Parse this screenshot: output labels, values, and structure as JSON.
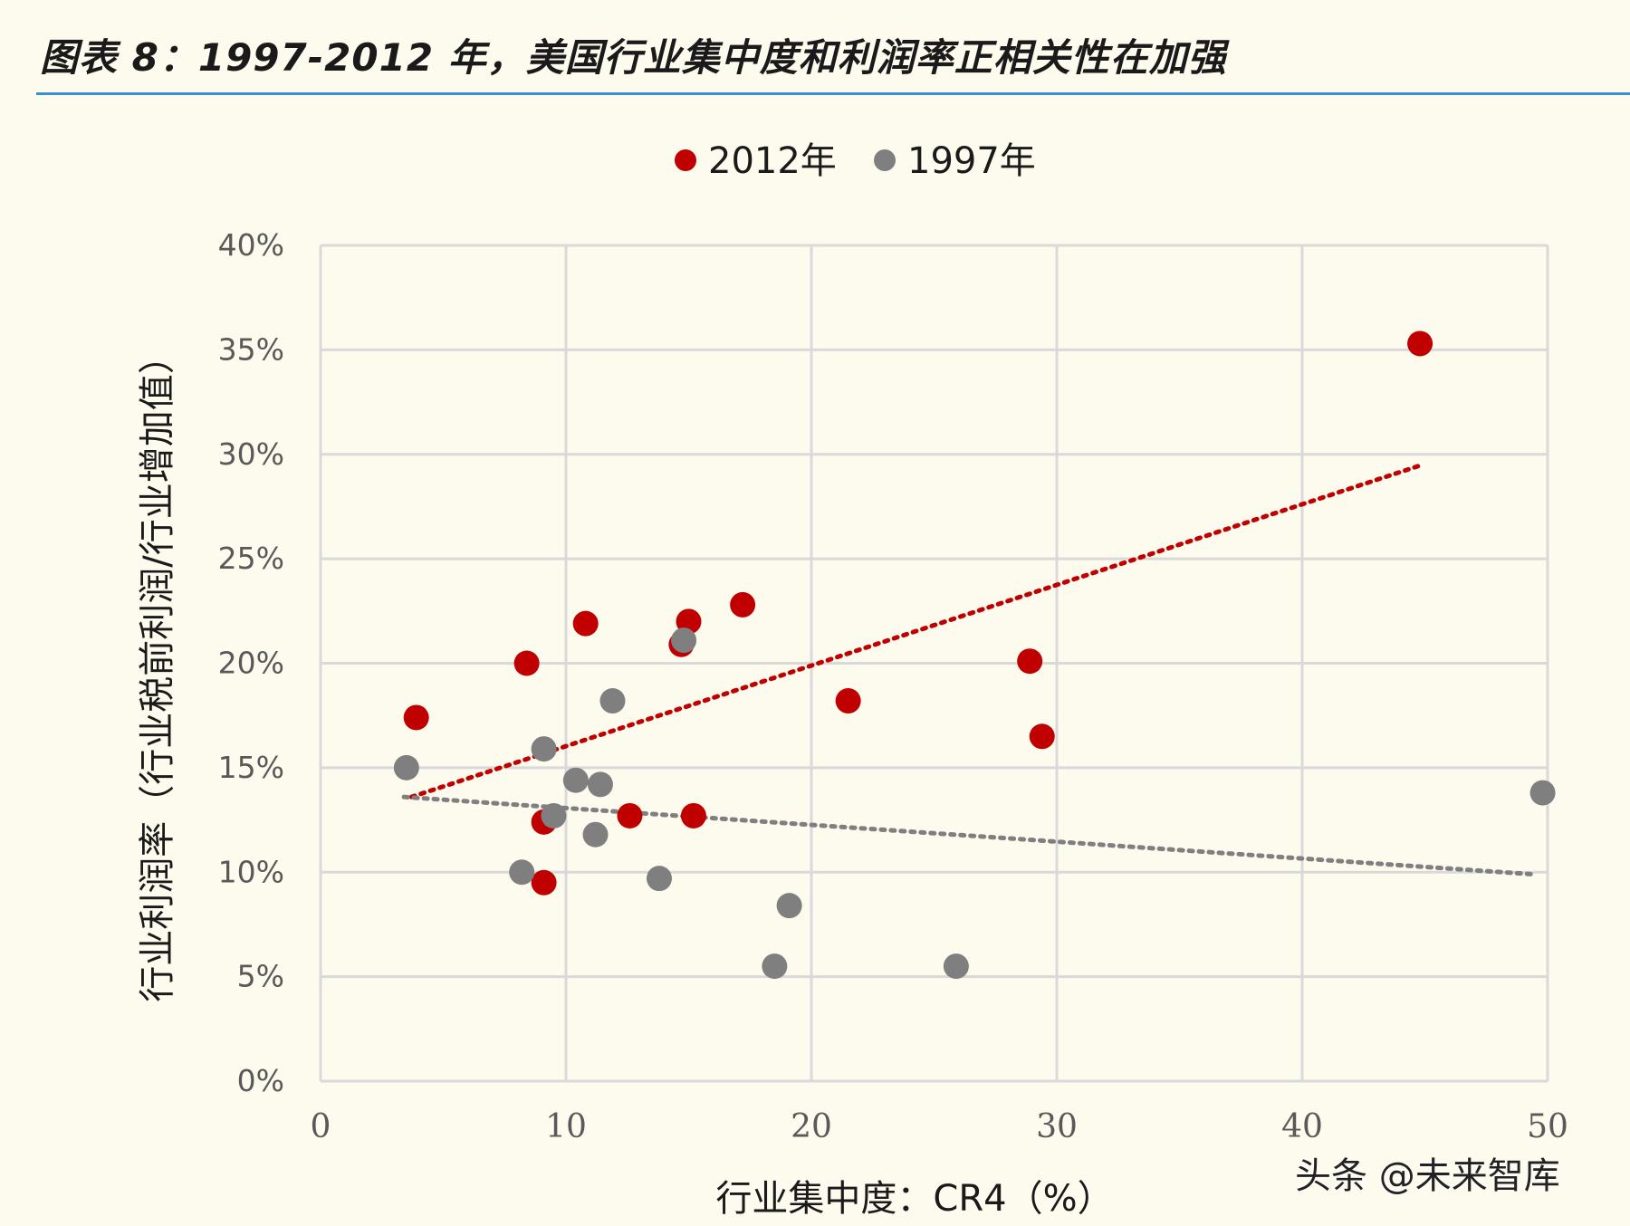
{
  "figure_caption": "图表 8：1997-2012 年，美国行业集中度和利润率正相关性在加强",
  "watermark": "头条 @未来智库",
  "colors": {
    "series_2012": "#c00000",
    "series_1997": "#7f7f7f",
    "accent": "#3c8dd8"
  },
  "chart_data": {
    "type": "scatter",
    "title": "",
    "xlabel": "行业集中度：CR4（%）",
    "ylabel": "行业利润率（行业税前利润/行业增加值）",
    "xlim": [
      0,
      50
    ],
    "ylim": [
      0,
      0.4
    ],
    "x_ticks": [
      0,
      10,
      20,
      30,
      40,
      50
    ],
    "x_tick_labels": [
      "0",
      "10",
      "20",
      "30",
      "40",
      "50"
    ],
    "y_ticks": [
      0,
      0.05,
      0.1,
      0.15,
      0.2,
      0.25,
      0.3,
      0.35,
      0.4
    ],
    "y_tick_labels": [
      "0%",
      "5%",
      "10%",
      "15%",
      "20%",
      "25%",
      "30%",
      "35%",
      "40%"
    ],
    "grid": true,
    "legend_position": "top-center",
    "series": [
      {
        "name": "2012年",
        "color": "#c00000",
        "points": [
          {
            "x": 3.9,
            "y": 0.174
          },
          {
            "x": 8.4,
            "y": 0.2
          },
          {
            "x": 10.8,
            "y": 0.219
          },
          {
            "x": 9.1,
            "y": 0.124
          },
          {
            "x": 9.1,
            "y": 0.095
          },
          {
            "x": 12.6,
            "y": 0.127
          },
          {
            "x": 14.7,
            "y": 0.209
          },
          {
            "x": 15.0,
            "y": 0.22
          },
          {
            "x": 15.2,
            "y": 0.127
          },
          {
            "x": 17.2,
            "y": 0.228
          },
          {
            "x": 21.5,
            "y": 0.182
          },
          {
            "x": 28.9,
            "y": 0.201
          },
          {
            "x": 29.4,
            "y": 0.165
          },
          {
            "x": 44.8,
            "y": 0.353
          }
        ],
        "trendline": {
          "style": "dotted",
          "x": [
            3.7,
            44.9
          ],
          "y": [
            0.136,
            0.295
          ]
        }
      },
      {
        "name": "1997年",
        "color": "#7f7f7f",
        "points": [
          {
            "x": 3.5,
            "y": 0.15
          },
          {
            "x": 8.2,
            "y": 0.1
          },
          {
            "x": 9.1,
            "y": 0.159
          },
          {
            "x": 9.5,
            "y": 0.127
          },
          {
            "x": 10.4,
            "y": 0.144
          },
          {
            "x": 11.2,
            "y": 0.118
          },
          {
            "x": 11.4,
            "y": 0.142
          },
          {
            "x": 11.9,
            "y": 0.182
          },
          {
            "x": 13.8,
            "y": 0.097
          },
          {
            "x": 14.8,
            "y": 0.211
          },
          {
            "x": 18.5,
            "y": 0.055
          },
          {
            "x": 19.1,
            "y": 0.084
          },
          {
            "x": 25.9,
            "y": 0.055
          },
          {
            "x": 49.8,
            "y": 0.138
          }
        ],
        "trendline": {
          "style": "dotted",
          "x": [
            3.4,
            49.4
          ],
          "y": [
            0.136,
            0.099
          ]
        }
      }
    ]
  }
}
